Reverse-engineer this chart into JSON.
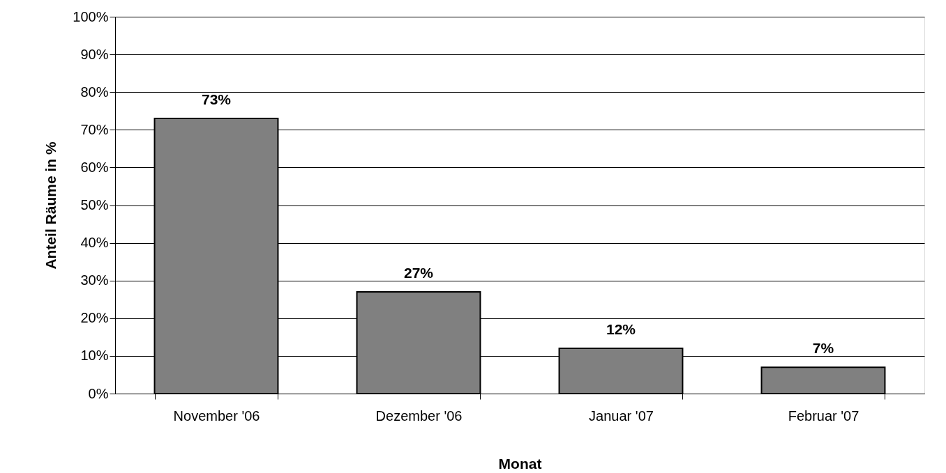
{
  "chart_data": {
    "type": "bar",
    "xlabel": "Monat",
    "ylabel": "Anteil Räume in %",
    "categories": [
      "November '06",
      "Dezember '06",
      "Januar '07",
      "Februar '07"
    ],
    "values": [
      73,
      27,
      12,
      7
    ],
    "value_labels": [
      "73%",
      "27%",
      "12%",
      "7%"
    ],
    "color": "#808080",
    "ylim": [
      0,
      100
    ],
    "yticks": [
      {
        "value": 0,
        "label": "0%"
      },
      {
        "value": 10,
        "label": "10%"
      },
      {
        "value": 20,
        "label": "20%"
      },
      {
        "value": 30,
        "label": "30%"
      },
      {
        "value": 40,
        "label": "40%"
      },
      {
        "value": 50,
        "label": "50%"
      },
      {
        "value": 60,
        "label": "60%"
      },
      {
        "value": 70,
        "label": "70%"
      },
      {
        "value": 80,
        "label": "80%"
      },
      {
        "value": 90,
        "label": "90%"
      },
      {
        "value": 100,
        "label": "100%"
      }
    ],
    "grid": "y"
  }
}
